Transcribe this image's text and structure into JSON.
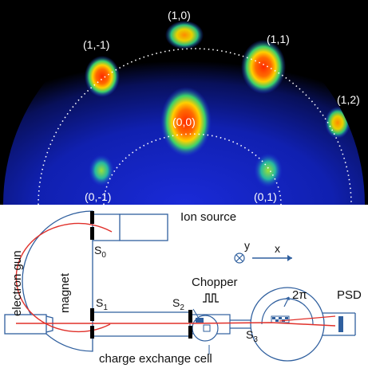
{
  "diffraction": {
    "spots": [
      {
        "id": "1-0",
        "label": "(1,0)"
      },
      {
        "id": "1-m1",
        "label": "(1,-1)"
      },
      {
        "id": "1-1",
        "label": "(1,1)"
      },
      {
        "id": "1-2",
        "label": "(1,2)"
      },
      {
        "id": "0-0",
        "label": "(0,0)"
      },
      {
        "id": "0-m1",
        "label": "(0,-1)"
      },
      {
        "id": "0-1",
        "label": "(0,1)"
      }
    ]
  },
  "setup": {
    "ion_source": "Ion source",
    "electron_gun": "electron gun",
    "magnet": "magnet",
    "s0": "S",
    "s0_sub": "0",
    "s1": "S",
    "s1_sub": "1",
    "s2": "S",
    "s2_sub": "2",
    "s3": "S",
    "s3_sub": "3",
    "chopper": "Chopper",
    "charge_exchange_cell": "charge exchange cell",
    "two_pi": "2π",
    "psd": "PSD",
    "axis_y": "y",
    "axis_x": "x"
  },
  "colors": {
    "beam": "#e0302a",
    "magnet_arc": "#e0302a",
    "chamber_line": "#2f5f9e",
    "slits": "#000000"
  }
}
